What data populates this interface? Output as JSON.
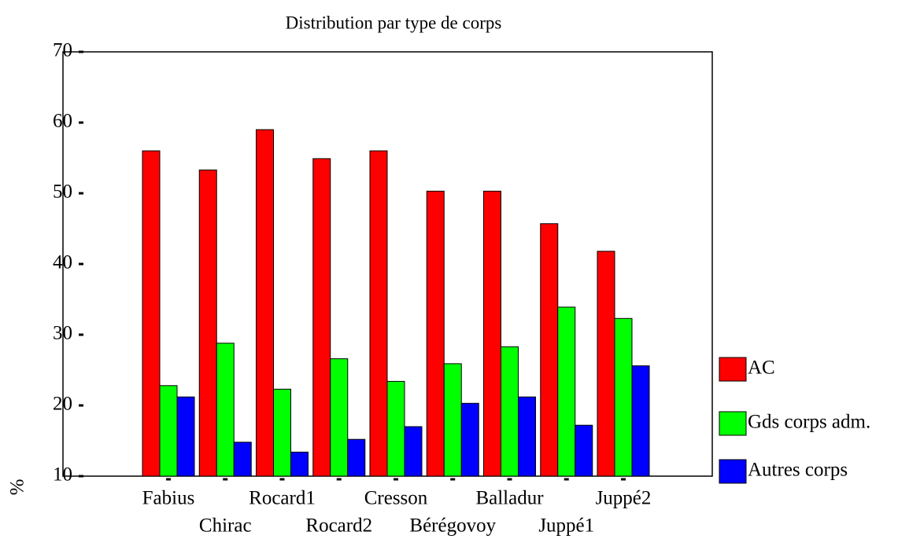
{
  "chart_data": {
    "type": "bar",
    "title": "Distribution par type de corps",
    "y_label": "%",
    "categories": [
      "Fabius",
      "Chirac",
      "Rocard1",
      "Rocard2",
      "Cresson",
      "Bérégovoy",
      "Balladur",
      "Juppé1",
      "Juppé2"
    ],
    "series": [
      {
        "name": "AC",
        "color": "#ff0000",
        "values": [
          56,
          53.3,
          59,
          54.9,
          56,
          50.3,
          50.3,
          45.7,
          41.8
        ]
      },
      {
        "name": "Gds corps adm.",
        "color": "#00ff00",
        "values": [
          22.8,
          28.8,
          22.3,
          26.6,
          23.4,
          25.9,
          28.3,
          33.9,
          32.3
        ]
      },
      {
        "name": "Autres corps",
        "color": "#0000ff",
        "values": [
          21.2,
          14.8,
          13.4,
          15.2,
          17,
          20.3,
          21.2,
          17.2,
          25.6
        ]
      }
    ],
    "ylim": [
      10,
      70
    ],
    "yticks": [
      10,
      20,
      30,
      40,
      50,
      60,
      70
    ],
    "legend": "right",
    "grid": false
  }
}
